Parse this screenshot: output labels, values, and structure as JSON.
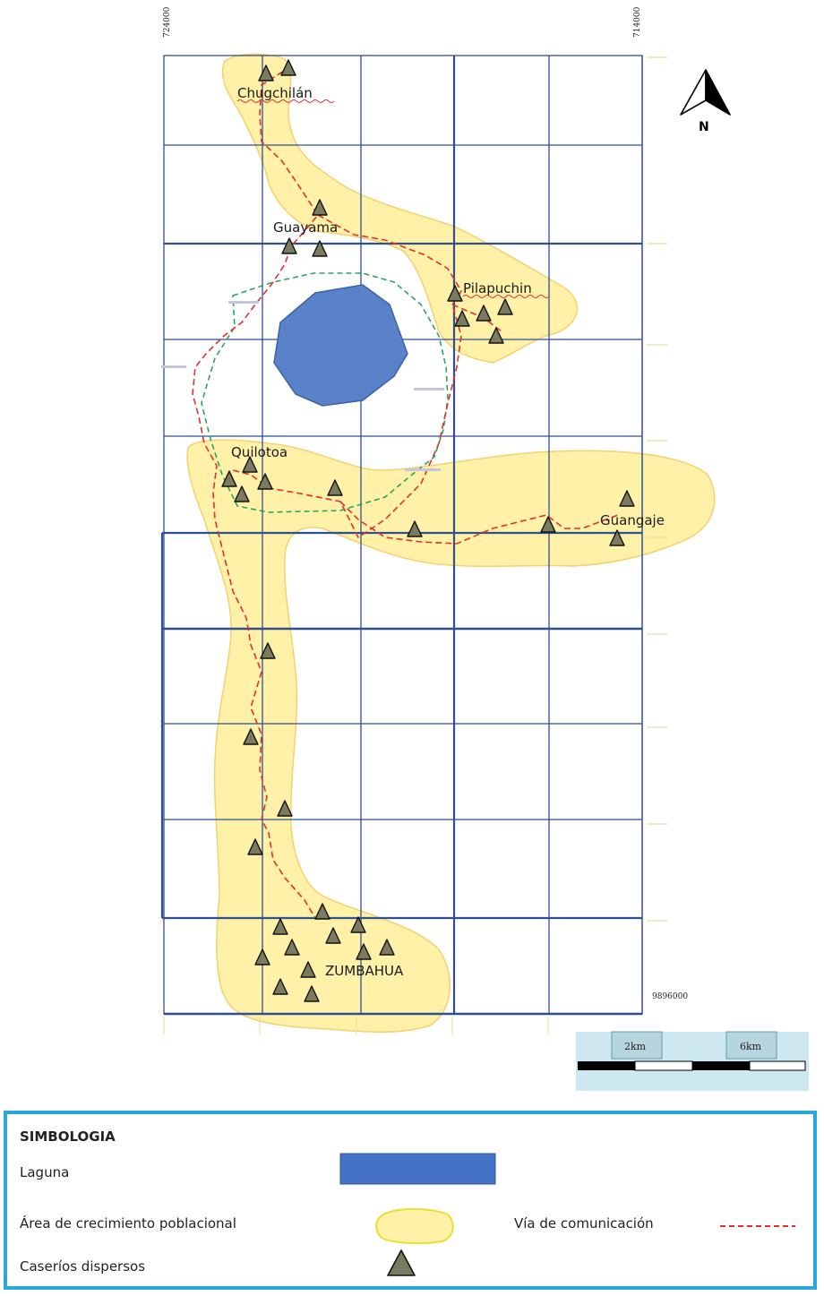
{
  "map": {
    "coord_top_left": "724000",
    "coord_top_right": "714000",
    "coord_bottom_right": "9896000",
    "north_label": "N",
    "places": {
      "chugchilan": "Chugchilán",
      "guayama": "Guayama",
      "pilapuchin": "Pilapuchin",
      "quilotoa": "Quilotoa",
      "guangaje": "Guangaje",
      "zumbahua": "ZUMBAHUA"
    },
    "colors": {
      "laguna": "#4472c4",
      "area": "#fff2a8",
      "road": "#e03030",
      "crater_path": "#2aa55a",
      "grid": "#2f4f8f"
    }
  },
  "scale_bar": {
    "label_1": "2km",
    "label_2": "6km"
  },
  "legend": {
    "title": "SIMBOLOGIA",
    "laguna": "Laguna",
    "area": "Área de crecimiento poblacional",
    "caserios": "Caseríos dispersos",
    "via": "Vía de comunicación"
  }
}
